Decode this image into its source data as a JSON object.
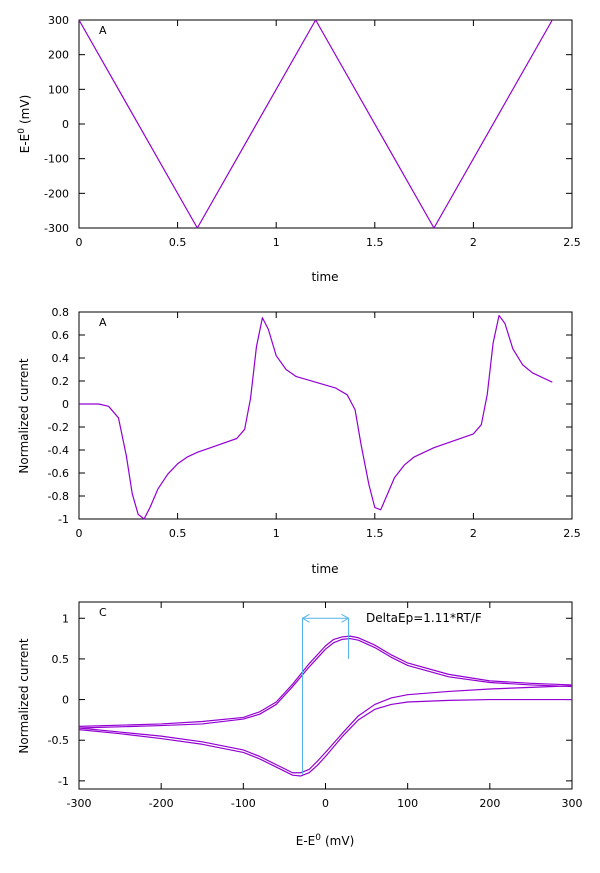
{
  "colors": {
    "series": "#9400d3",
    "annotation": "#56b4e9",
    "axis": "#000000"
  },
  "chart_data": [
    {
      "type": "line",
      "panel_label": "A",
      "xlabel": "time",
      "ylabel_main": "E-E",
      "ylabel_sup": "0",
      "ylabel_unit": "(mV)",
      "xlim": [
        0,
        2.5
      ],
      "ylim": [
        -300,
        300
      ],
      "xticks": [
        0,
        0.5,
        1,
        1.5,
        2,
        2.5
      ],
      "xtick_labels": [
        "0",
        "0.5",
        "1",
        "1.5",
        "2",
        "2.5"
      ],
      "yticks": [
        -300,
        -200,
        -100,
        0,
        100,
        200,
        300
      ],
      "ytick_labels": [
        "-300",
        "-200",
        "-100",
        "0",
        "100",
        "200",
        "300"
      ],
      "series": [
        {
          "x": [
            0,
            0.6,
            1.2,
            1.8,
            2.4
          ],
          "y": [
            300,
            -300,
            300,
            -300,
            300
          ]
        }
      ]
    },
    {
      "type": "line",
      "panel_label": "A",
      "xlabel": "time",
      "ylabel": "Normalized current",
      "xlim": [
        0,
        2.5
      ],
      "ylim": [
        -1,
        0.8
      ],
      "xticks": [
        0,
        0.5,
        1,
        1.5,
        2,
        2.5
      ],
      "xtick_labels": [
        "0",
        "0.5",
        "1",
        "1.5",
        "2",
        "2.5"
      ],
      "yticks": [
        -1,
        -0.8,
        -0.6,
        -0.4,
        -0.2,
        0,
        0.2,
        0.4,
        0.6,
        0.8
      ],
      "ytick_labels": [
        "-1",
        "-0.8",
        "-0.6",
        "-0.4",
        "-0.2",
        "0",
        "0.2",
        "0.4",
        "0.6",
        "0.8"
      ],
      "series": [
        {
          "x": [
            0,
            0.1,
            0.15,
            0.2,
            0.24,
            0.27,
            0.3,
            0.33,
            0.36,
            0.4,
            0.45,
            0.5,
            0.55,
            0.6,
            0.7,
            0.8,
            0.84,
            0.87,
            0.9,
            0.93,
            0.96,
            1.0,
            1.05,
            1.1,
            1.2,
            1.3,
            1.36,
            1.4,
            1.43,
            1.47,
            1.5,
            1.53,
            1.56,
            1.6,
            1.65,
            1.7,
            1.8,
            1.9,
            2.0,
            2.04,
            2.07,
            2.1,
            2.13,
            2.16,
            2.2,
            2.25,
            2.3,
            2.4
          ],
          "y": [
            0,
            0,
            -0.02,
            -0.12,
            -0.45,
            -0.78,
            -0.96,
            -1.0,
            -0.9,
            -0.74,
            -0.61,
            -0.52,
            -0.46,
            -0.42,
            -0.36,
            -0.3,
            -0.22,
            0.05,
            0.5,
            0.75,
            0.65,
            0.42,
            0.3,
            0.24,
            0.19,
            0.14,
            0.08,
            -0.05,
            -0.35,
            -0.7,
            -0.9,
            -0.92,
            -0.8,
            -0.64,
            -0.53,
            -0.46,
            -0.38,
            -0.32,
            -0.26,
            -0.18,
            0.08,
            0.53,
            0.77,
            0.7,
            0.48,
            0.34,
            0.27,
            0.19
          ]
        }
      ]
    },
    {
      "type": "line",
      "panel_label": "C",
      "xlabel_main": "E-E",
      "xlabel_sup": "0",
      "xlabel_unit": "(mV)",
      "ylabel": "Normalized current",
      "xlim": [
        -300,
        300
      ],
      "ylim": [
        -1.1,
        1.2
      ],
      "xticks": [
        -300,
        -200,
        -100,
        0,
        100,
        200,
        300
      ],
      "xtick_labels": [
        "-300",
        "-200",
        "-100",
        "0",
        "100",
        "200",
        "300"
      ],
      "yticks": [
        -1,
        -0.5,
        0,
        0.5,
        1
      ],
      "ytick_labels": [
        "-1",
        "-0.5",
        "0",
        "0.5",
        "1"
      ],
      "annotation": {
        "text": "DeltaEp=1.11*RT/F",
        "x_left": -28,
        "x_right": 28,
        "y_bar": 1.0
      },
      "series": [
        {
          "x": [
            -300,
            -200,
            -150,
            -100,
            -80,
            -60,
            -40,
            -20,
            0,
            10,
            20,
            30,
            40,
            60,
            80,
            100,
            150,
            200,
            250,
            300
          ],
          "y": [
            -0.35,
            -0.32,
            -0.3,
            -0.24,
            -0.18,
            -0.06,
            0.16,
            0.4,
            0.62,
            0.7,
            0.74,
            0.75,
            0.73,
            0.64,
            0.52,
            0.42,
            0.28,
            0.21,
            0.18,
            0.16
          ]
        },
        {
          "x": [
            -300,
            -200,
            -150,
            -100,
            -80,
            -60,
            -40,
            -20,
            0,
            10,
            20,
            30,
            40,
            60,
            80,
            100,
            150,
            200,
            250,
            300
          ],
          "y": [
            -0.33,
            -0.3,
            -0.27,
            -0.22,
            -0.15,
            -0.03,
            0.19,
            0.44,
            0.66,
            0.74,
            0.77,
            0.78,
            0.76,
            0.67,
            0.55,
            0.45,
            0.31,
            0.23,
            0.2,
            0.18
          ]
        },
        {
          "x": [
            300,
            250,
            200,
            150,
            100,
            80,
            60,
            40,
            20,
            0,
            -10,
            -20,
            -30,
            -40,
            -60,
            -80,
            -100,
            -150,
            -200,
            -250,
            -300
          ],
          "y": [
            0.17,
            0.15,
            0.13,
            0.1,
            0.06,
            0.02,
            -0.06,
            -0.2,
            -0.42,
            -0.65,
            -0.76,
            -0.86,
            -0.9,
            -0.9,
            -0.8,
            -0.7,
            -0.62,
            -0.52,
            -0.45,
            -0.4,
            -0.35
          ]
        },
        {
          "x": [
            300,
            250,
            200,
            150,
            100,
            80,
            60,
            40,
            20,
            0,
            -10,
            -20,
            -30,
            -40,
            -60,
            -80,
            -100,
            -150,
            -200,
            -250,
            -300
          ],
          "y": [
            0.0,
            0.0,
            0.0,
            -0.01,
            -0.03,
            -0.06,
            -0.12,
            -0.25,
            -0.46,
            -0.7,
            -0.81,
            -0.9,
            -0.94,
            -0.93,
            -0.83,
            -0.73,
            -0.65,
            -0.55,
            -0.48,
            -0.42,
            -0.37
          ]
        }
      ]
    }
  ]
}
